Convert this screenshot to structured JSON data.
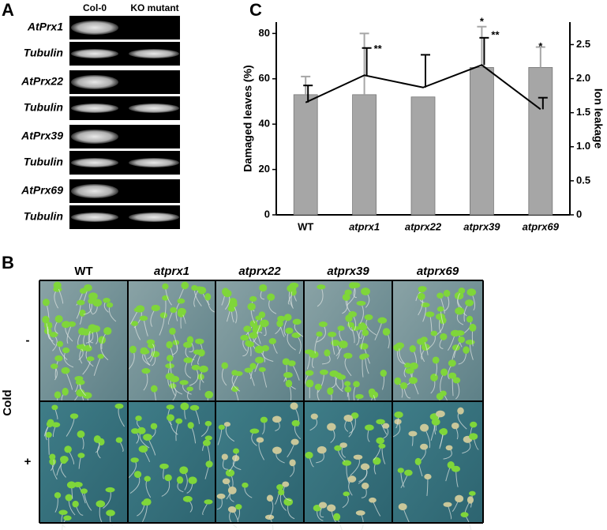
{
  "panel_labels": [
    "A",
    "B",
    "C"
  ],
  "gel": {
    "columns": [
      "Col-0",
      "KO mutant"
    ],
    "rows": [
      "AtPrx1",
      "Tubulin",
      "AtPrx22",
      "Tubulin",
      "AtPrx39",
      "Tubulin",
      "AtPrx69",
      "Tubulin"
    ]
  },
  "seedlings": {
    "columns": [
      "WT",
      "atprx1",
      "atprx22",
      "atprx39",
      "atprx69"
    ],
    "row_title": "Cold",
    "rows": [
      "-",
      "+"
    ]
  },
  "chart_data": {
    "type": "bar",
    "categories": [
      "WT",
      "atprx1",
      "atprx22",
      "atprx39",
      "atprx69"
    ],
    "ylabel": "Damaged leaves (%)",
    "y2label": "Ion leakage",
    "ylim": [
      0,
      85
    ],
    "yticks": [
      0,
      20,
      40,
      60,
      80
    ],
    "y2lim": [
      0,
      2.83
    ],
    "y2ticks": [
      0,
      0.5,
      {
        "value": 1,
        "label": "1.0"
      },
      1.5,
      {
        "value": 2,
        "label": "2.0"
      },
      2.5
    ],
    "series": [
      {
        "type": "bar",
        "color": "#a6a6a6",
        "values": [
          53,
          53,
          52,
          65,
          65
        ],
        "errors": [
          8,
          27,
          null,
          18,
          9
        ]
      },
      {
        "type": "line",
        "axis": "y2",
        "color": "#000000",
        "values": [
          1.65,
          2.05,
          1.87,
          2.2,
          1.55
        ],
        "errors": [
          0.25,
          0.4,
          0.48,
          0.4,
          0.17
        ]
      }
    ],
    "annotations": [
      {
        "text": "**",
        "x": "atprx1",
        "y": 73
      },
      {
        "text": "*",
        "x": "atprx39",
        "y": 85
      },
      {
        "text": "**",
        "x": "atprx39",
        "y": 79
      },
      {
        "text": "*",
        "x": "atprx69",
        "y": 74
      }
    ]
  }
}
